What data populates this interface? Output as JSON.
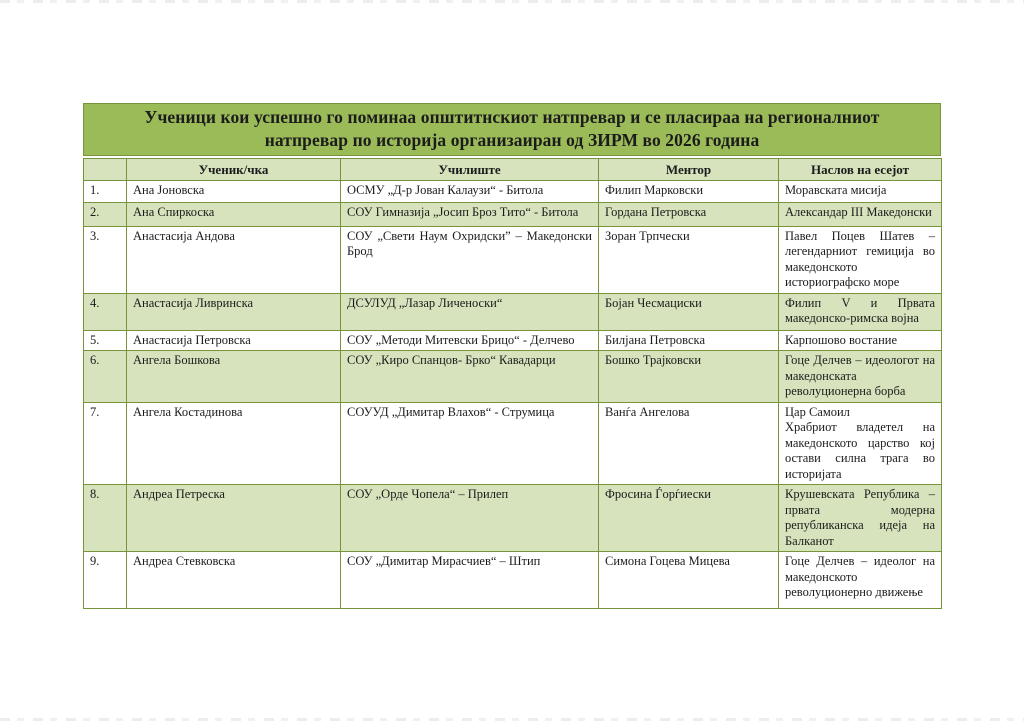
{
  "page": {
    "title_line1": "Ученици кои успешно го поминаа општитнскиот натпревар и се пласираа на регионалниот",
    "title_line2": "натпревар по историја организаиран од ЗИРМ во 2026 година"
  },
  "table": {
    "columns": {
      "number": "",
      "student": "Ученик/чка",
      "school": "Училиште",
      "mentor": "Ментор",
      "essay": "Наслов на есејот"
    },
    "rows": [
      {
        "num": "1.",
        "student": "Ана Јоновска",
        "school": "ОСМУ „Д-р Јован Калаузи“ - Битола",
        "mentor": "Филип Марковски",
        "essay": "Моравската мисија"
      },
      {
        "num": "2.",
        "student": "Ана Спиркоска",
        "school": "СОУ Гимназија „Јосип Броз Тито“ - Битола",
        "mentor": "Гордана Петровска",
        "essay": "Александар III Македонски"
      },
      {
        "num": "3.",
        "student": "Анастасија Андова",
        "school": "СОУ „Свети Наум Охридски” – Македонски Брод",
        "mentor": "Зоран Трпчески",
        "essay": "Павел Поцев Шатев – легендарниот гемиција во македонското историографско море"
      },
      {
        "num": "4.",
        "student": "Анастасија Ливринска",
        "school": "ДСУЛУД „Лазар Личеноски“",
        "mentor": "Бојан Чесмациски",
        "essay": "Филип V и Првата македонско-римска војна"
      },
      {
        "num": "5.",
        "student": "Анастасија Петровска",
        "school": "СОУ „Методи Митевски Брицо“ - Делчево",
        "mentor": "Билјана Петровска",
        "essay": "Карпошово востание"
      },
      {
        "num": "6.",
        "student": "Ангела Бошкова",
        "school": "СОУ „Киро Спанцов- Брко“ Кавадарци",
        "mentor": "Бошко Трајковски",
        "essay": "Гоце Делчев – идеологот на македонската револуционерна борба"
      },
      {
        "num": "7.",
        "student": "Ангела Костадинова",
        "school": "СОУУД „Димитар Влахов“ - Струмица",
        "mentor": "Ванѓа Ангелова",
        "essay": "Цар Самоил\nХрабриот владетел на македонското царство кој остави силна трага во историјата"
      },
      {
        "num": "8.",
        "student": "Андреа Петреска",
        "school": "СОУ „Орде Чопела“ – Прилеп",
        "mentor": "Фросина Ѓорѓиески",
        "essay": "Крушевската Република – првата модерна републиканска идеја на Балканот"
      },
      {
        "num": "9.",
        "student": "Андреа Стевковска",
        "school": "СОУ „Димитар Мирасчиев“ – Штип",
        "mentor": "Симона Гоцева Мицева",
        "essay": "Гоце Делчев – идеолог на македонското револуционерно движење"
      }
    ]
  },
  "colors": {
    "title_bg": "#9bbb59",
    "row_alt_bg": "#d6e3bc",
    "border_col": "#77933c",
    "text_col": "#1c1c1c"
  }
}
